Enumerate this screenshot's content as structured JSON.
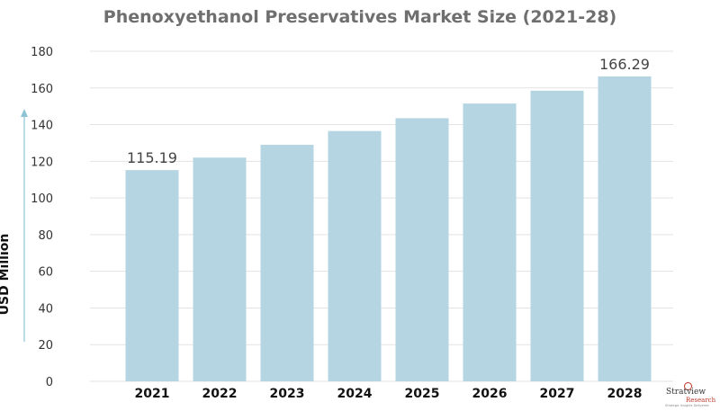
{
  "chart_data": {
    "type": "bar",
    "title": "Phenoxyethanol Preservatives Market Size (2021-28)",
    "xlabel": "",
    "ylabel": "USD Million",
    "categories": [
      "2021",
      "2022",
      "2023",
      "2024",
      "2025",
      "2026",
      "2027",
      "2028"
    ],
    "values": [
      115.19,
      122,
      129,
      136.5,
      143.5,
      151.5,
      158.5,
      166.29
    ],
    "data_labels": [
      {
        "index": 0,
        "text": "115.19"
      },
      {
        "index": 7,
        "text": "166.29"
      }
    ],
    "ylim": [
      0,
      180
    ],
    "yticks": [
      "0",
      "20",
      "40",
      "60",
      "80",
      "100",
      "120",
      "140",
      "160",
      "180"
    ],
    "grid": true,
    "bar_color": "#b5d5e3"
  },
  "logo": {
    "brand": "Stratview",
    "sub": "Research",
    "tagline": "Strategic Insights Delivered"
  }
}
